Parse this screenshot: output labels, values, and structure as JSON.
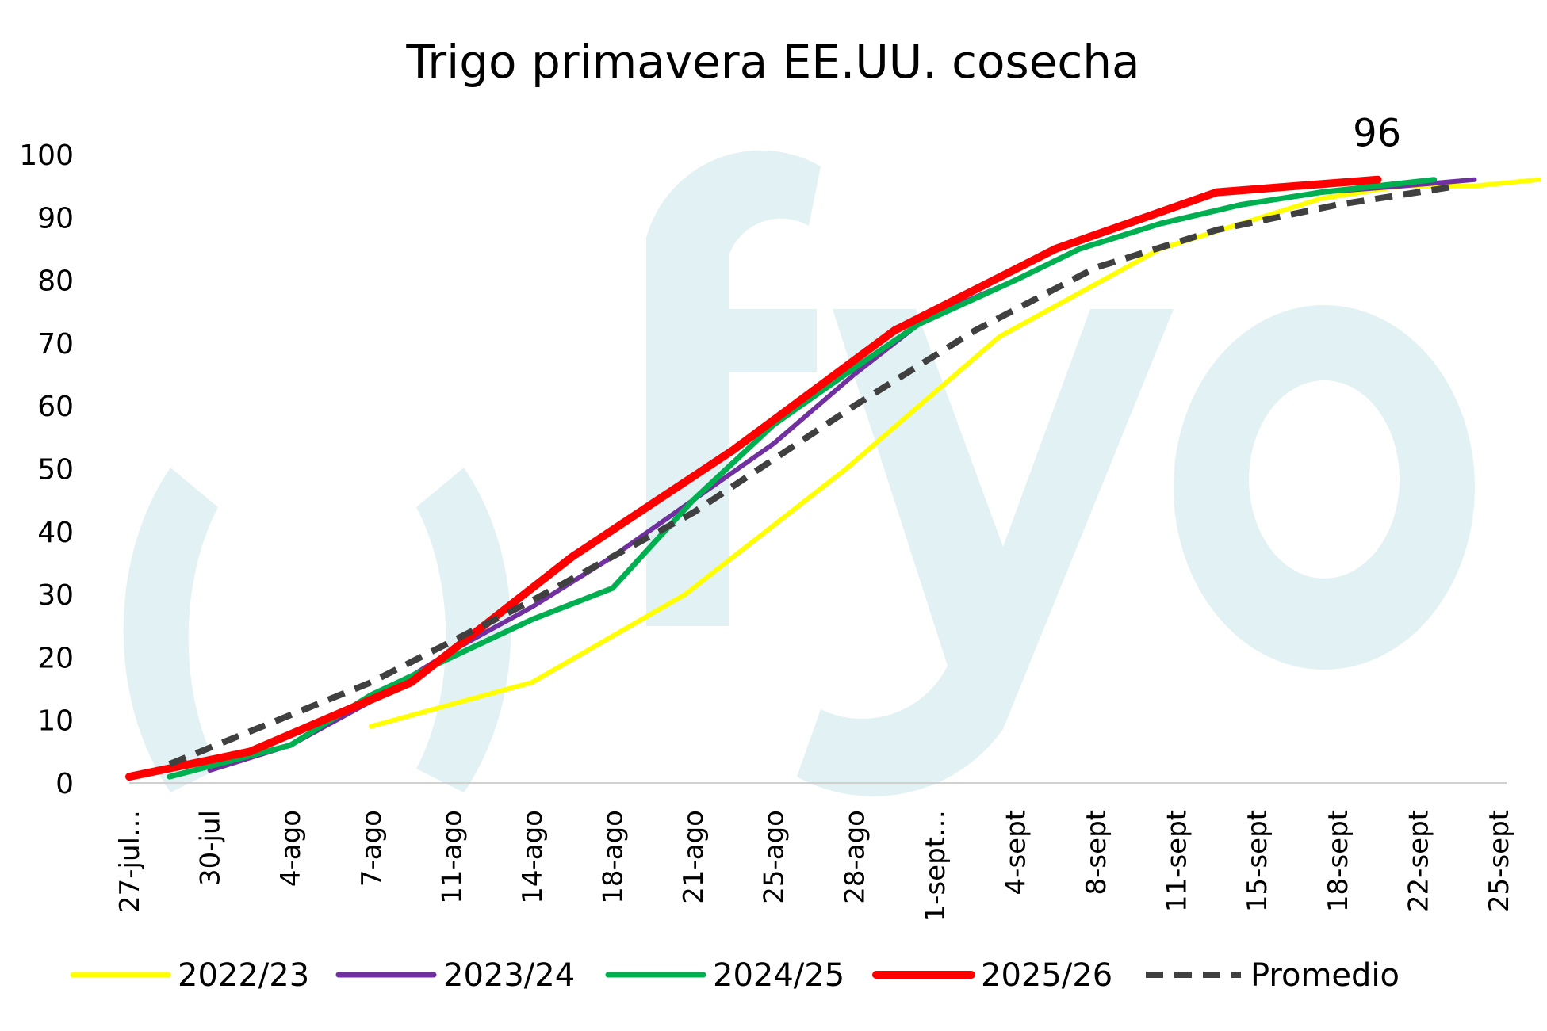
{
  "chart_data": {
    "type": "line",
    "title": "Trigo primavera EE.UU. cosecha",
    "xlabel": "",
    "ylabel": "",
    "ylim": [
      0,
      100
    ],
    "y_ticks": [
      "0",
      "10",
      "20",
      "30",
      "40",
      "50",
      "60",
      "70",
      "80",
      "90",
      "100"
    ],
    "grid": false,
    "legend_position": "bottom",
    "categories": [
      "27-jul…",
      "30-jul",
      "4-ago",
      "7-ago",
      "11-ago",
      "14-ago",
      "18-ago",
      "21-ago",
      "25-ago",
      "28-ago",
      "1-sept…",
      "4-sept",
      "8-sept",
      "11-sept",
      "15-sept",
      "18-sept",
      "22-sept",
      "25-sept"
    ],
    "series": [
      {
        "name": "2022/23",
        "color": "#FFFF00",
        "dash": false,
        "width": 6,
        "points": [
          [
            3,
            9
          ],
          [
            5,
            16
          ],
          [
            6.9,
            30
          ],
          [
            8.9,
            50
          ],
          [
            10.8,
            71
          ],
          [
            12.8,
            85
          ],
          [
            14.8,
            93
          ],
          [
            15.8,
            95
          ],
          [
            16.7,
            95
          ],
          [
            17.5,
            96
          ]
        ]
      },
      {
        "name": "2023/24",
        "color": "#7030A0",
        "dash": false,
        "width": 6,
        "points": [
          [
            1,
            2
          ],
          [
            2,
            6
          ],
          [
            3,
            13
          ],
          [
            4,
            21
          ],
          [
            5,
            28
          ],
          [
            6,
            36
          ],
          [
            7,
            45
          ],
          [
            8,
            54
          ],
          [
            9,
            65
          ],
          [
            9.9,
            74
          ],
          [
            11,
            80
          ],
          [
            11.8,
            85
          ],
          [
            12.8,
            89
          ],
          [
            13.8,
            92
          ],
          [
            14.8,
            94
          ],
          [
            15.8,
            95
          ],
          [
            16.7,
            96
          ]
        ]
      },
      {
        "name": "2024/25",
        "color": "#00B050",
        "dash": false,
        "width": 7,
        "points": [
          [
            0.5,
            1
          ],
          [
            2,
            6
          ],
          [
            3,
            14
          ],
          [
            4,
            20
          ],
          [
            5,
            26
          ],
          [
            6,
            31
          ],
          [
            7,
            45
          ],
          [
            8,
            57
          ],
          [
            9,
            66
          ],
          [
            9.8,
            73
          ],
          [
            11,
            80
          ],
          [
            11.8,
            85
          ],
          [
            12.8,
            89
          ],
          [
            13.8,
            92
          ],
          [
            14.8,
            94
          ],
          [
            16.2,
            96
          ]
        ]
      },
      {
        "name": "2025/26",
        "color": "#FF0000",
        "dash": false,
        "width": 10,
        "points": [
          [
            0,
            1
          ],
          [
            1.5,
            5
          ],
          [
            3.5,
            16
          ],
          [
            5.5,
            36
          ],
          [
            7.5,
            53
          ],
          [
            9.5,
            72
          ],
          [
            11.5,
            85
          ],
          [
            13.5,
            94
          ],
          [
            15.5,
            96
          ]
        ]
      },
      {
        "name": "Promedio",
        "color": "#404040",
        "dash": true,
        "width": 8,
        "points": [
          [
            0.5,
            3
          ],
          [
            3,
            16
          ],
          [
            5,
            29
          ],
          [
            7,
            43
          ],
          [
            9,
            60
          ],
          [
            10.5,
            72
          ],
          [
            12,
            82
          ],
          [
            13.5,
            88
          ],
          [
            15,
            92
          ],
          [
            16.5,
            95
          ]
        ]
      }
    ],
    "annotations": [
      {
        "text": "96",
        "x": 15.5,
        "y": 96
      }
    ],
    "watermark": "fyo"
  }
}
